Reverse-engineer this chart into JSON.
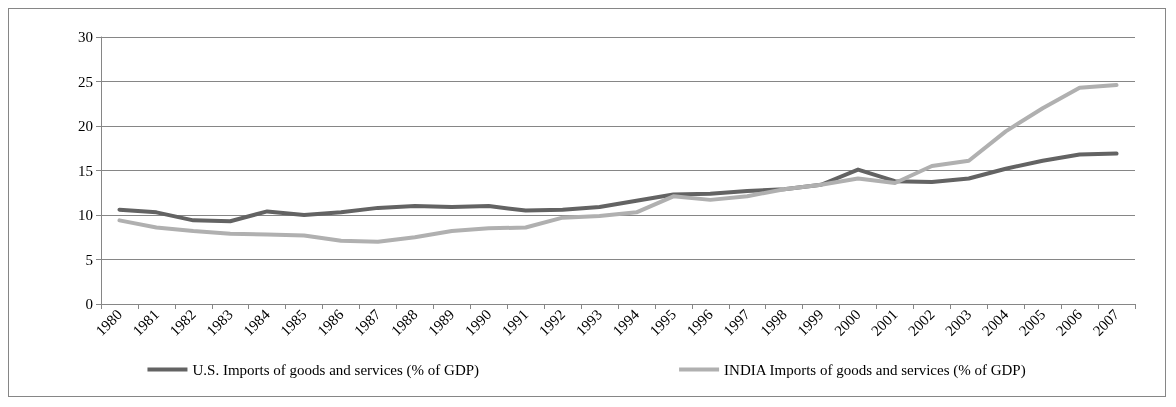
{
  "chart_data": {
    "type": "line",
    "categories": [
      "1980",
      "1981",
      "1982",
      "1983",
      "1984",
      "1985",
      "1986",
      "1987",
      "1988",
      "1989",
      "1990",
      "1991",
      "1992",
      "1993",
      "1994",
      "1995",
      "1996",
      "1997",
      "1998",
      "1999",
      "2000",
      "2001",
      "2002",
      "2003",
      "2004",
      "2005",
      "2006",
      "2007"
    ],
    "series": [
      {
        "name": "U.S. Imports of goods and services (% of GDP)",
        "color": "#636363",
        "values": [
          10.6,
          10.3,
          9.4,
          9.3,
          10.4,
          10.0,
          10.3,
          10.8,
          11.0,
          10.9,
          11.0,
          10.5,
          10.6,
          10.9,
          11.6,
          12.3,
          12.4,
          12.7,
          12.9,
          13.4,
          15.1,
          13.8,
          13.7,
          14.1,
          15.2,
          16.1,
          16.8,
          16.9
        ]
      },
      {
        "name": "INDIA Imports of goods and services (% of GDP)",
        "color": "#b0b0b0",
        "values": [
          9.4,
          8.6,
          8.2,
          7.9,
          7.8,
          7.7,
          7.1,
          7.0,
          7.5,
          8.2,
          8.5,
          8.6,
          9.7,
          9.9,
          10.3,
          12.1,
          11.7,
          12.1,
          12.9,
          13.4,
          14.1,
          13.6,
          15.5,
          16.1,
          19.4,
          22.0,
          24.3,
          24.6
        ]
      }
    ],
    "ylim": [
      0,
      30
    ],
    "yticks": [
      0,
      5,
      10,
      15,
      20,
      25,
      30
    ],
    "grid": "y",
    "legend": "bottom",
    "marker": "none",
    "line_style": "solid"
  }
}
